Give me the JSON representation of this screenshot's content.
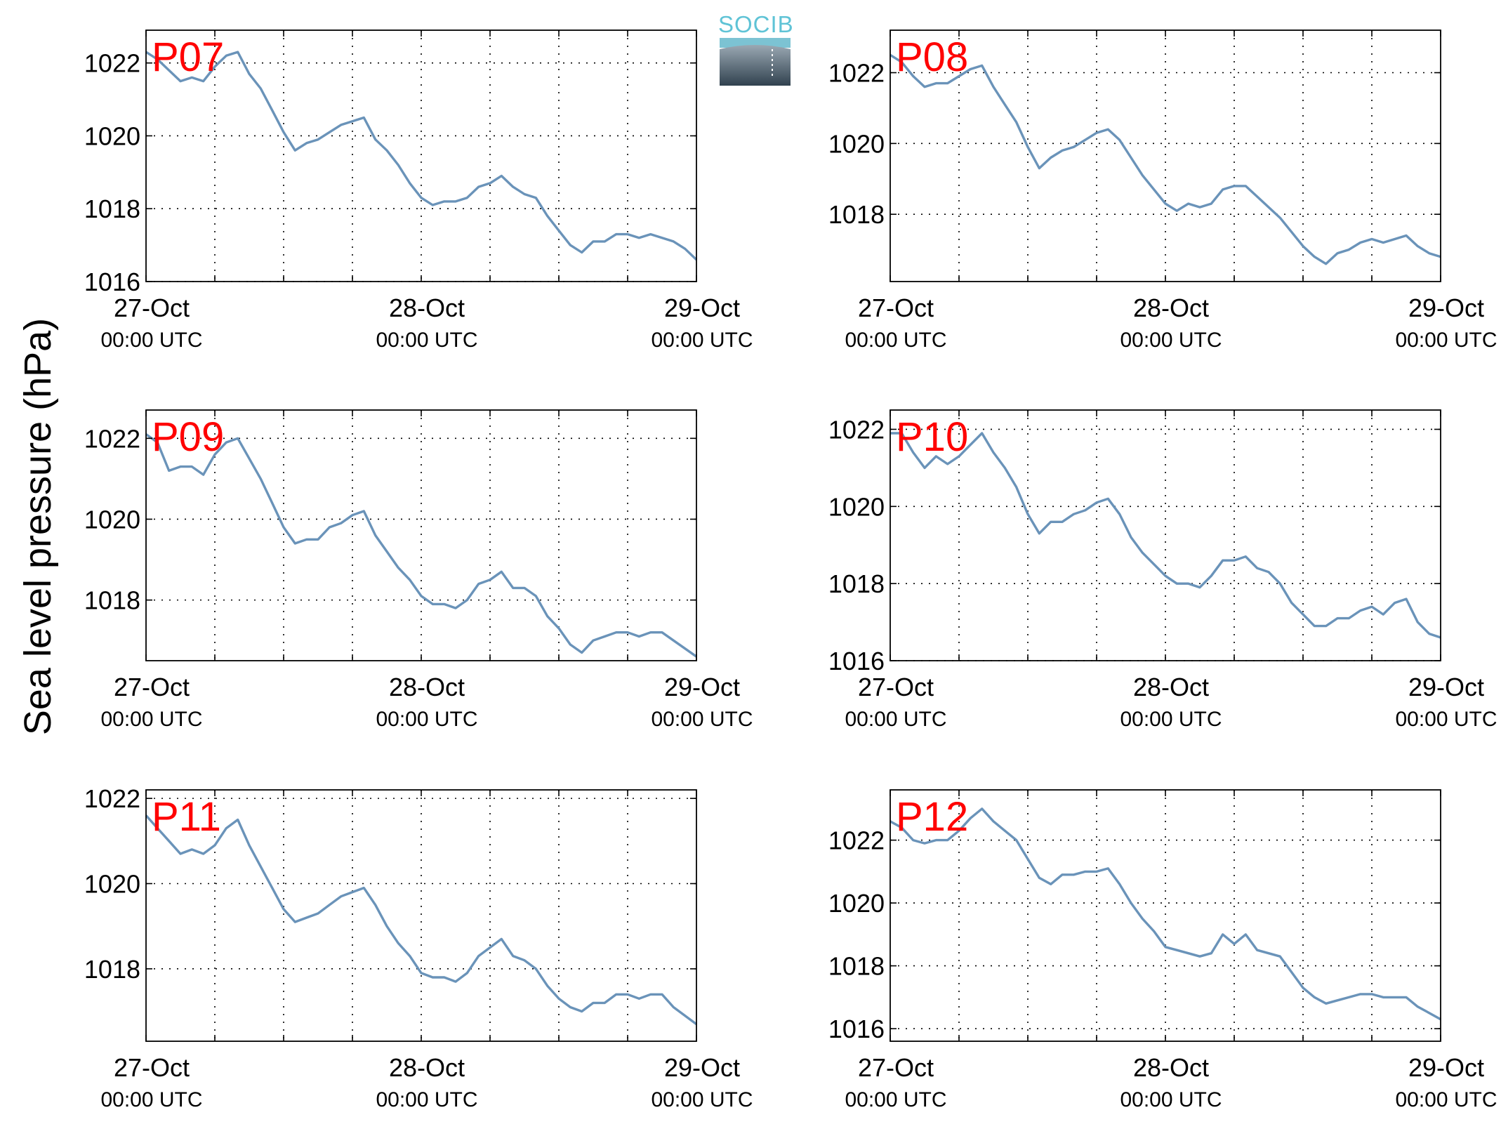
{
  "figure": {
    "ylabel": "Sea level pressure (hPa)",
    "logo_text": "SOCIB"
  },
  "chart_data": [
    {
      "type": "line",
      "label": "P07",
      "ylim": [
        1016,
        1022.9
      ],
      "yticks": [
        "1016",
        "1018",
        "1020",
        "1022"
      ],
      "ytick_values": [
        1016,
        1018,
        1020,
        1022
      ],
      "xlim": [
        0,
        48
      ],
      "xticks": [
        {
          "pos": 0,
          "date": "27-Oct",
          "time": "00:00 UTC"
        },
        {
          "pos": 24,
          "date": "28-Oct",
          "time": "00:00 UTC"
        },
        {
          "pos": 48,
          "date": "29-Oct",
          "time": "00:00 UTC"
        }
      ],
      "grid": true,
      "color": "#6a93b9",
      "series": [
        {
          "x": [
            0,
            1,
            2,
            3,
            4,
            5,
            6,
            7,
            8,
            9,
            10,
            11,
            12,
            13,
            14,
            15,
            16,
            17,
            18,
            19,
            20,
            21,
            22,
            23,
            24,
            25,
            26,
            27,
            28,
            29,
            30,
            31,
            32,
            33,
            34,
            35,
            36,
            37,
            38,
            39,
            40,
            41,
            42,
            43,
            44,
            45,
            46,
            47,
            48
          ],
          "y": [
            1022.3,
            1022.1,
            1021.8,
            1021.5,
            1021.6,
            1021.5,
            1021.9,
            1022.2,
            1022.3,
            1021.7,
            1021.3,
            1020.7,
            1020.1,
            1019.6,
            1019.8,
            1019.9,
            1020.1,
            1020.3,
            1020.4,
            1020.5,
            1019.9,
            1019.6,
            1019.2,
            1018.7,
            1018.3,
            1018.1,
            1018.2,
            1018.2,
            1018.3,
            1018.6,
            1018.7,
            1018.9,
            1018.6,
            1018.4,
            1018.3,
            1017.8,
            1017.4,
            1017.0,
            1016.8,
            1017.1,
            1017.1,
            1017.3,
            1017.3,
            1017.2,
            1017.3,
            1017.2,
            1017.1,
            1016.9,
            1016.6
          ]
        }
      ]
    },
    {
      "type": "line",
      "label": "P08",
      "ylim": [
        1016.1,
        1023.2
      ],
      "yticks": [
        "1018",
        "1020",
        "1022"
      ],
      "ytick_values": [
        1018,
        1020,
        1022
      ],
      "xlim": [
        0,
        48
      ],
      "xticks": [
        {
          "pos": 0,
          "date": "27-Oct",
          "time": "00:00 UTC"
        },
        {
          "pos": 24,
          "date": "28-Oct",
          "time": "00:00 UTC"
        },
        {
          "pos": 48,
          "date": "29-Oct",
          "time": "00:00 UTC"
        }
      ],
      "grid": true,
      "color": "#6a93b9",
      "series": [
        {
          "x": [
            0,
            1,
            2,
            3,
            4,
            5,
            6,
            7,
            8,
            9,
            10,
            11,
            12,
            13,
            14,
            15,
            16,
            17,
            18,
            19,
            20,
            21,
            22,
            23,
            24,
            25,
            26,
            27,
            28,
            29,
            30,
            31,
            32,
            33,
            34,
            35,
            36,
            37,
            38,
            39,
            40,
            41,
            42,
            43,
            44,
            45,
            46,
            47,
            48
          ],
          "y": [
            1022.5,
            1022.3,
            1021.9,
            1021.6,
            1021.7,
            1021.7,
            1021.9,
            1022.1,
            1022.2,
            1021.6,
            1021.1,
            1020.6,
            1019.9,
            1019.3,
            1019.6,
            1019.8,
            1019.9,
            1020.1,
            1020.3,
            1020.4,
            1020.1,
            1019.6,
            1019.1,
            1018.7,
            1018.3,
            1018.1,
            1018.3,
            1018.2,
            1018.3,
            1018.7,
            1018.8,
            1018.8,
            1018.5,
            1018.2,
            1017.9,
            1017.5,
            1017.1,
            1016.8,
            1016.6,
            1016.9,
            1017.0,
            1017.2,
            1017.3,
            1017.2,
            1017.3,
            1017.4,
            1017.1,
            1016.9,
            1016.8
          ]
        }
      ]
    },
    {
      "type": "line",
      "label": "P09",
      "ylim": [
        1016.5,
        1022.7
      ],
      "yticks": [
        "1018",
        "1020",
        "1022"
      ],
      "ytick_values": [
        1018,
        1020,
        1022
      ],
      "xlim": [
        0,
        48
      ],
      "xticks": [
        {
          "pos": 0,
          "date": "27-Oct",
          "time": "00:00 UTC"
        },
        {
          "pos": 24,
          "date": "28-Oct",
          "time": "00:00 UTC"
        },
        {
          "pos": 48,
          "date": "29-Oct",
          "time": "00:00 UTC"
        }
      ],
      "grid": true,
      "color": "#6a93b9",
      "series": [
        {
          "x": [
            0,
            1,
            2,
            3,
            4,
            5,
            6,
            7,
            8,
            9,
            10,
            11,
            12,
            13,
            14,
            15,
            16,
            17,
            18,
            19,
            20,
            21,
            22,
            23,
            24,
            25,
            26,
            27,
            28,
            29,
            30,
            31,
            32,
            33,
            34,
            35,
            36,
            37,
            38,
            39,
            40,
            41,
            42,
            43,
            44,
            45,
            46,
            47,
            48
          ],
          "y": [
            1022.1,
            1021.9,
            1021.2,
            1021.3,
            1021.3,
            1021.1,
            1021.6,
            1021.9,
            1022.0,
            1021.5,
            1021.0,
            1020.4,
            1019.8,
            1019.4,
            1019.5,
            1019.5,
            1019.8,
            1019.9,
            1020.1,
            1020.2,
            1019.6,
            1019.2,
            1018.8,
            1018.5,
            1018.1,
            1017.9,
            1017.9,
            1017.8,
            1018.0,
            1018.4,
            1018.5,
            1018.7,
            1018.3,
            1018.3,
            1018.1,
            1017.6,
            1017.3,
            1016.9,
            1016.7,
            1017.0,
            1017.1,
            1017.2,
            1017.2,
            1017.1,
            1017.2,
            1017.2,
            1017.0,
            1016.8,
            1016.6
          ]
        }
      ]
    },
    {
      "type": "line",
      "label": "P10",
      "ylim": [
        1016,
        1022.5
      ],
      "yticks": [
        "1016",
        "1018",
        "1020",
        "1022"
      ],
      "ytick_values": [
        1016,
        1018,
        1020,
        1022
      ],
      "xlim": [
        0,
        48
      ],
      "xticks": [
        {
          "pos": 0,
          "date": "27-Oct",
          "time": "00:00 UTC"
        },
        {
          "pos": 24,
          "date": "28-Oct",
          "time": "00:00 UTC"
        },
        {
          "pos": 48,
          "date": "29-Oct",
          "time": "00:00 UTC"
        }
      ],
      "grid": true,
      "color": "#6a93b9",
      "series": [
        {
          "x": [
            0,
            1,
            2,
            3,
            4,
            5,
            6,
            7,
            8,
            9,
            10,
            11,
            12,
            13,
            14,
            15,
            16,
            17,
            18,
            19,
            20,
            21,
            22,
            23,
            24,
            25,
            26,
            27,
            28,
            29,
            30,
            31,
            32,
            33,
            34,
            35,
            36,
            37,
            38,
            39,
            40,
            41,
            42,
            43,
            44,
            45,
            46,
            47,
            48
          ],
          "y": [
            1021.9,
            1021.9,
            1021.4,
            1021.0,
            1021.3,
            1021.1,
            1021.3,
            1021.6,
            1021.9,
            1021.4,
            1021.0,
            1020.5,
            1019.8,
            1019.3,
            1019.6,
            1019.6,
            1019.8,
            1019.9,
            1020.1,
            1020.2,
            1019.8,
            1019.2,
            1018.8,
            1018.5,
            1018.2,
            1018.0,
            1018.0,
            1017.9,
            1018.2,
            1018.6,
            1018.6,
            1018.7,
            1018.4,
            1018.3,
            1018.0,
            1017.5,
            1017.2,
            1016.9,
            1016.9,
            1017.1,
            1017.1,
            1017.3,
            1017.4,
            1017.2,
            1017.5,
            1017.6,
            1017.0,
            1016.7,
            1016.6
          ]
        }
      ]
    },
    {
      "type": "line",
      "label": "P11",
      "ylim": [
        1016.3,
        1022.2
      ],
      "yticks": [
        "1018",
        "1020",
        "1022"
      ],
      "ytick_values": [
        1018,
        1020,
        1022
      ],
      "xlim": [
        0,
        48
      ],
      "xticks": [
        {
          "pos": 0,
          "date": "27-Oct",
          "time": "00:00 UTC"
        },
        {
          "pos": 24,
          "date": "28-Oct",
          "time": "00:00 UTC"
        },
        {
          "pos": 48,
          "date": "29-Oct",
          "time": "00:00 UTC"
        }
      ],
      "grid": true,
      "color": "#6a93b9",
      "series": [
        {
          "x": [
            0,
            1,
            2,
            3,
            4,
            5,
            6,
            7,
            8,
            9,
            10,
            11,
            12,
            13,
            14,
            15,
            16,
            17,
            18,
            19,
            20,
            21,
            22,
            23,
            24,
            25,
            26,
            27,
            28,
            29,
            30,
            31,
            32,
            33,
            34,
            35,
            36,
            37,
            38,
            39,
            40,
            41,
            42,
            43,
            44,
            45,
            46,
            47,
            48
          ],
          "y": [
            1021.6,
            1021.3,
            1021.0,
            1020.7,
            1020.8,
            1020.7,
            1020.9,
            1021.3,
            1021.5,
            1020.9,
            1020.4,
            1019.9,
            1019.4,
            1019.1,
            1019.2,
            1019.3,
            1019.5,
            1019.7,
            1019.8,
            1019.9,
            1019.5,
            1019.0,
            1018.6,
            1018.3,
            1017.9,
            1017.8,
            1017.8,
            1017.7,
            1017.9,
            1018.3,
            1018.5,
            1018.7,
            1018.3,
            1018.2,
            1018.0,
            1017.6,
            1017.3,
            1017.1,
            1017.0,
            1017.2,
            1017.2,
            1017.4,
            1017.4,
            1017.3,
            1017.4,
            1017.4,
            1017.1,
            1016.9,
            1016.7
          ]
        }
      ]
    },
    {
      "type": "line",
      "label": "P12",
      "ylim": [
        1015.6,
        1023.6
      ],
      "yticks": [
        "1016",
        "1018",
        "1020",
        "1022"
      ],
      "ytick_values": [
        1016,
        1018,
        1020,
        1022
      ],
      "xlim": [
        0,
        48
      ],
      "xticks": [
        {
          "pos": 0,
          "date": "27-Oct",
          "time": "00:00 UTC"
        },
        {
          "pos": 24,
          "date": "28-Oct",
          "time": "00:00 UTC"
        },
        {
          "pos": 48,
          "date": "29-Oct",
          "time": "00:00 UTC"
        }
      ],
      "grid": true,
      "color": "#6a93b9",
      "series": [
        {
          "x": [
            0,
            1,
            2,
            3,
            4,
            5,
            6,
            7,
            8,
            9,
            10,
            11,
            12,
            13,
            14,
            15,
            16,
            17,
            18,
            19,
            20,
            21,
            22,
            23,
            24,
            25,
            26,
            27,
            28,
            29,
            30,
            31,
            32,
            33,
            34,
            35,
            36,
            37,
            38,
            39,
            40,
            41,
            42,
            43,
            44,
            45,
            46,
            47,
            48
          ],
          "y": [
            1022.6,
            1022.4,
            1022.0,
            1021.9,
            1022.0,
            1022.0,
            1022.3,
            1022.7,
            1023.0,
            1022.6,
            1022.3,
            1022.0,
            1021.4,
            1020.8,
            1020.6,
            1020.9,
            1020.9,
            1021.0,
            1021.0,
            1021.1,
            1020.6,
            1020.0,
            1019.5,
            1019.1,
            1018.6,
            1018.5,
            1018.4,
            1018.3,
            1018.4,
            1019.0,
            1018.7,
            1019.0,
            1018.5,
            1018.4,
            1018.3,
            1017.8,
            1017.3,
            1017.0,
            1016.8,
            1016.9,
            1017.0,
            1017.1,
            1017.1,
            1017.0,
            1017.0,
            1017.0,
            1016.7,
            1016.5,
            1016.3
          ]
        }
      ]
    }
  ]
}
